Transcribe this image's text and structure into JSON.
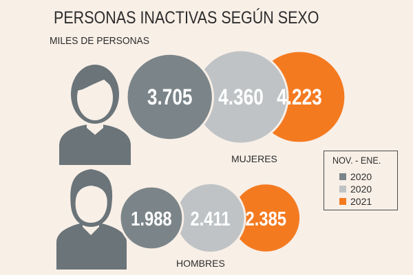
{
  "chart_data": {
    "type": "bubble",
    "title": "PERSONAS INACTIVAS SEGÚN SEXO",
    "subtitle": "MILES DE PERSONAS",
    "legend": {
      "title": "NOV. - ENE.",
      "placement": "right",
      "entries": [
        {
          "label": "2020",
          "color": "#7b8589"
        },
        {
          "label": "2020",
          "color": "#bfc3c5"
        },
        {
          "label": "2021",
          "color": "#f47a20"
        }
      ]
    },
    "groups": [
      {
        "name": "MUJERES",
        "icon": "woman-icon",
        "values": [
          3705,
          4360,
          4223
        ],
        "labels": [
          "3.705",
          "4.360",
          "4.223"
        ]
      },
      {
        "name": "HOMBRES",
        "icon": "man-icon",
        "values": [
          1988,
          2411,
          2385
        ],
        "labels": [
          "1.988",
          "2.411",
          "2.385"
        ]
      }
    ]
  }
}
